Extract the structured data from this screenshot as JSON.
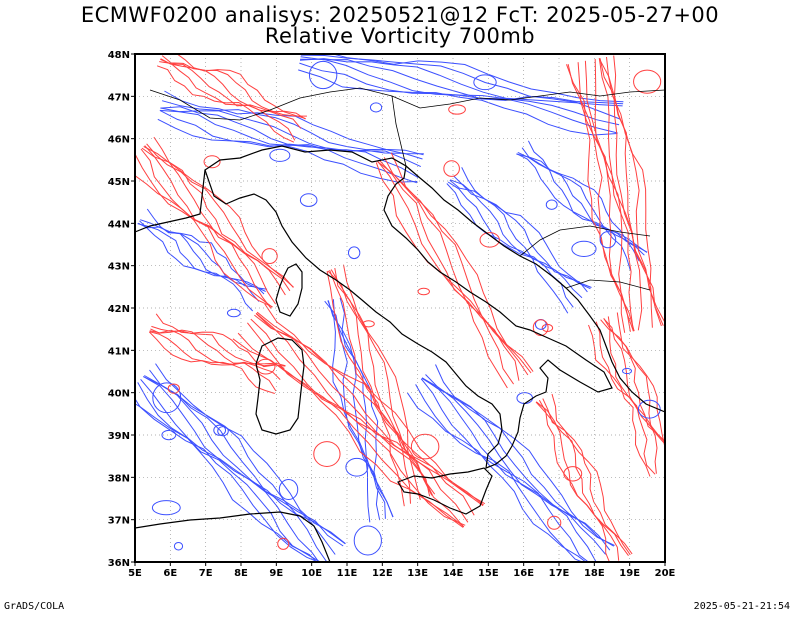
{
  "header": {
    "title_line1": "ECMWF0200 analisys: 20250521@12 FcT: 2025-05-27+00",
    "title_line2": "Relative Vorticity 700mb"
  },
  "footer": {
    "left": "GrADS/COLA",
    "right": "2025-05-21-21:54"
  },
  "map": {
    "lat_labels": [
      "48N",
      "47N",
      "46N",
      "45N",
      "44N",
      "43N",
      "42N",
      "41N",
      "40N",
      "39N",
      "38N",
      "37N",
      "36N"
    ],
    "lon_labels": [
      "5E",
      "6E",
      "7E",
      "8E",
      "9E",
      "10E",
      "11E",
      "12E",
      "13E",
      "14E",
      "15E",
      "16E",
      "17E",
      "18E",
      "19E",
      "20E"
    ],
    "lon_range": [
      5,
      20
    ],
    "lat_range": [
      36,
      48
    ],
    "grid": true,
    "colors": {
      "positive_contours": "#ff4040",
      "negative_contours": "#3c50ff",
      "coastline": "#000000",
      "grid": "#999999"
    }
  }
}
